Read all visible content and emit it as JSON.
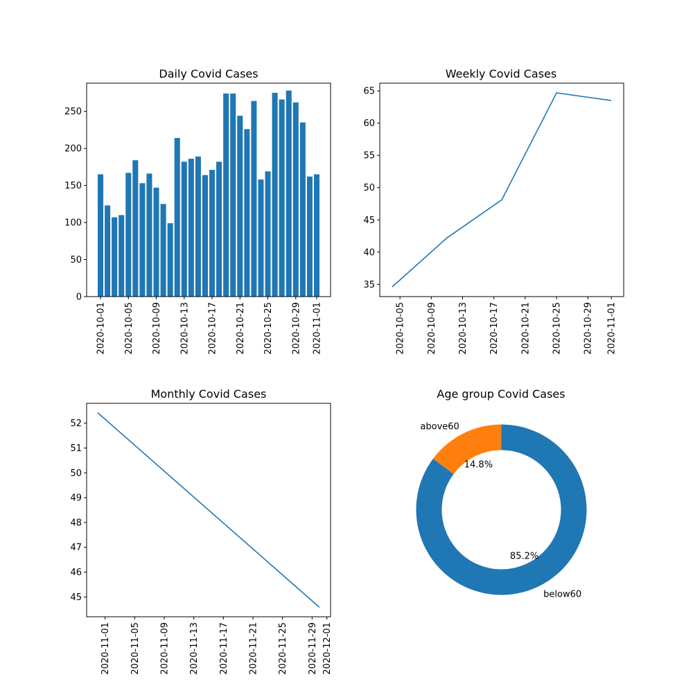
{
  "colors": {
    "blue": "#1f77b4",
    "orange": "#ff7f0e"
  },
  "chart_data": [
    {
      "type": "bar",
      "title": "Daily Covid Cases",
      "xlabel": "",
      "ylabel": "",
      "x": [
        "2020-10-01",
        "2020-10-02",
        "2020-10-03",
        "2020-10-04",
        "2020-10-05",
        "2020-10-06",
        "2020-10-07",
        "2020-10-08",
        "2020-10-09",
        "2020-10-10",
        "2020-10-11",
        "2020-10-12",
        "2020-10-13",
        "2020-10-14",
        "2020-10-15",
        "2020-10-16",
        "2020-10-17",
        "2020-10-18",
        "2020-10-19",
        "2020-10-20",
        "2020-10-21",
        "2020-10-22",
        "2020-10-23",
        "2020-10-24",
        "2020-10-25",
        "2020-10-26",
        "2020-10-27",
        "2020-10-28",
        "2020-10-29",
        "2020-10-30",
        "2020-10-31",
        "2020-11-01"
      ],
      "values": [
        165,
        123,
        107,
        110,
        167,
        184,
        153,
        166,
        147,
        125,
        99,
        214,
        182,
        186,
        189,
        164,
        171,
        182,
        274,
        274,
        244,
        226,
        264,
        158,
        169,
        275,
        266,
        278,
        262,
        235,
        162,
        165
      ],
      "xticks": [
        "2020-10-01",
        "2020-10-05",
        "2020-10-09",
        "2020-10-13",
        "2020-10-17",
        "2020-10-21",
        "2020-10-25",
        "2020-10-29",
        "2020-11-01"
      ],
      "yticks": [
        0,
        50,
        100,
        150,
        200,
        250
      ],
      "ylim": [
        0,
        288
      ],
      "grid": false
    },
    {
      "type": "line",
      "title": "Weekly Covid Cases",
      "xlabel": "",
      "ylabel": "",
      "x": [
        "2020-10-04",
        "2020-10-11",
        "2020-10-18",
        "2020-10-25",
        "2020-11-01"
      ],
      "values": [
        34.6,
        42.2,
        48.1,
        64.7,
        63.5
      ],
      "xticks": [
        "2020-10-05",
        "2020-10-09",
        "2020-10-13",
        "2020-10-17",
        "2020-10-21",
        "2020-10-25",
        "2020-10-29",
        "2020-11-01"
      ],
      "yticks": [
        35,
        40,
        45,
        50,
        55,
        60,
        65
      ],
      "xlim": [
        "2020-10-02T10:00",
        "2020-11-02T14:00"
      ],
      "ylim": [
        33.1,
        66.2
      ],
      "grid": false
    },
    {
      "type": "line",
      "title": "Monthly Covid Cases",
      "xlabel": "",
      "ylabel": "",
      "x": [
        "2020-10-31",
        "2020-11-30"
      ],
      "values": [
        52.42,
        44.58
      ],
      "xticks": [
        "2020-11-01",
        "2020-11-05",
        "2020-11-09",
        "2020-11-13",
        "2020-11-17",
        "2020-11-21",
        "2020-11-25",
        "2020-11-29",
        "2020-12-01"
      ],
      "yticks": [
        45,
        46,
        47,
        48,
        49,
        50,
        51,
        52
      ],
      "xlim": [
        "2020-10-29T12:00",
        "2020-12-01T12:00"
      ],
      "ylim": [
        44.2,
        52.8
      ],
      "grid": false
    },
    {
      "type": "pie",
      "title": "Age group Covid Cases",
      "donut": true,
      "slices": [
        {
          "label": "above60",
          "value": 14.8,
          "pct_label": "14.8%"
        },
        {
          "label": "below60",
          "value": 85.2,
          "pct_label": "85.2%"
        }
      ]
    }
  ]
}
